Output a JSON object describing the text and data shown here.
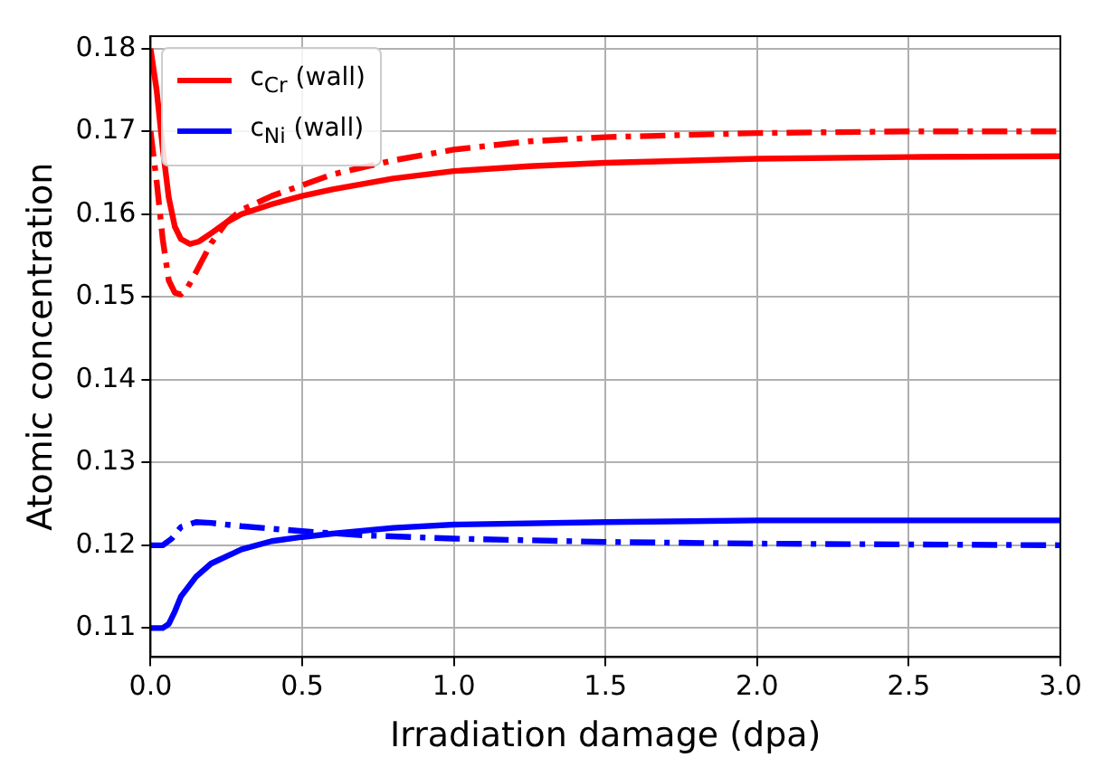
{
  "chart_data": {
    "type": "line",
    "xlabel": "Irradiation damage (dpa)",
    "ylabel": "Atomic concentration",
    "xlim": [
      0,
      3
    ],
    "xticks": [
      {
        "value": 0,
        "label": "0.0"
      },
      {
        "value": 0.5,
        "label": "0.5"
      },
      {
        "value": 1,
        "label": "1.0"
      },
      {
        "value": 1.5,
        "label": "1.5"
      },
      {
        "value": 2,
        "label": "2.0"
      },
      {
        "value": 2.5,
        "label": "2.5"
      },
      {
        "value": 3,
        "label": "3.0"
      }
    ],
    "ylim": [
      0.1065,
      0.1815
    ],
    "yticks": [
      0.11,
      0.12,
      0.13,
      0.14,
      0.15,
      0.16,
      0.17,
      0.18
    ],
    "grid": true,
    "legend": "top left",
    "marker": "none",
    "series": [
      {
        "name": "c$_{Cr}$ (wall)",
        "color": "#ff0000",
        "line_style": "solid",
        "x": [
          0,
          0.02,
          0.04,
          0.06,
          0.08,
          0.1,
          0.13,
          0.16,
          0.2,
          0.25,
          0.3,
          0.4,
          0.5,
          0.6,
          0.8,
          1.0,
          1.25,
          1.5,
          2.0,
          2.5,
          3.0
        ],
        "values": [
          0.18,
          0.175,
          0.168,
          0.162,
          0.1585,
          0.157,
          0.1564,
          0.1567,
          0.1577,
          0.159,
          0.16,
          0.1612,
          0.1622,
          0.163,
          0.1643,
          0.1652,
          0.1658,
          0.1662,
          0.1667,
          0.1669,
          0.167
        ]
      },
      {
        "color": "#ff0000",
        "line_style": "dashdot",
        "x": [
          0,
          0.02,
          0.04,
          0.06,
          0.08,
          0.1,
          0.12,
          0.15,
          0.2,
          0.25,
          0.3,
          0.4,
          0.5,
          0.6,
          0.8,
          1.0,
          1.25,
          1.5,
          2.0,
          2.5,
          3.0
        ],
        "values": [
          0.17,
          0.164,
          0.157,
          0.152,
          0.1505,
          0.1503,
          0.151,
          0.153,
          0.1565,
          0.159,
          0.1605,
          0.1622,
          0.1635,
          0.1648,
          0.1665,
          0.1678,
          0.1688,
          0.1693,
          0.1698,
          0.17,
          0.17
        ]
      },
      {
        "name": "c$_{Ni}$ (wall)",
        "color": "#0000ff",
        "line_style": "solid",
        "x": [
          0,
          0.04,
          0.06,
          0.08,
          0.1,
          0.15,
          0.2,
          0.3,
          0.4,
          0.5,
          0.6,
          0.8,
          1.0,
          1.5,
          2.0,
          2.5,
          3.0
        ],
        "values": [
          0.11,
          0.11,
          0.1105,
          0.112,
          0.1138,
          0.1162,
          0.1178,
          0.1195,
          0.1205,
          0.121,
          0.1214,
          0.1221,
          0.1225,
          0.1228,
          0.123,
          0.123,
          0.123
        ]
      },
      {
        "color": "#0000ff",
        "line_style": "dashdot",
        "x": [
          0,
          0.04,
          0.07,
          0.1,
          0.15,
          0.2,
          0.3,
          0.5,
          0.7,
          1.0,
          1.5,
          2.0,
          2.5,
          3.0
        ],
        "values": [
          0.12,
          0.12,
          0.1208,
          0.1222,
          0.1228,
          0.1227,
          0.1223,
          0.1217,
          0.1212,
          0.1208,
          0.1204,
          0.1202,
          0.1201,
          0.12
        ]
      }
    ]
  }
}
